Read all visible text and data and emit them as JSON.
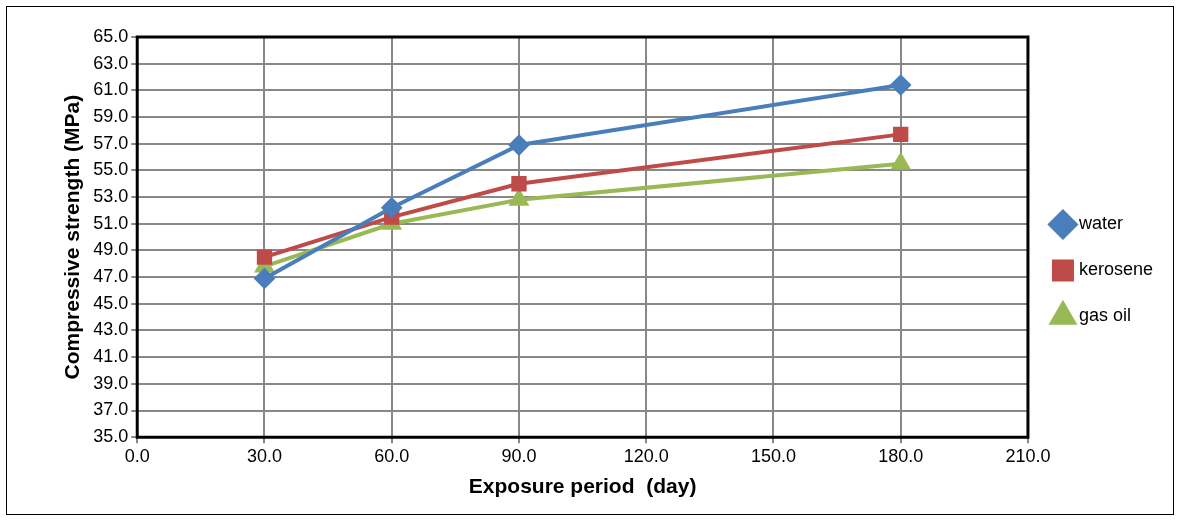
{
  "chart_data": {
    "type": "line",
    "xlabel": "Exposure period  (day)",
    "ylabel": "Compressive strength (MPa)",
    "x": [
      30,
      60,
      90,
      180
    ],
    "series": [
      {
        "name": "water",
        "color": "#4a7ebb",
        "marker": "diamond",
        "values": [
          46.9,
          52.2,
          56.9,
          61.4
        ]
      },
      {
        "name": "kerosene",
        "color": "#be4b48",
        "marker": "square",
        "values": [
          48.5,
          51.5,
          54.0,
          57.7
        ]
      },
      {
        "name": "gas oil",
        "color": "#98b954",
        "marker": "triangle",
        "values": [
          47.8,
          51.0,
          52.8,
          55.5
        ]
      }
    ],
    "xlim": [
      0,
      210
    ],
    "xticks": [
      {
        "value": 0,
        "label": "0.0"
      },
      {
        "value": 30,
        "label": "30.0"
      },
      {
        "value": 60,
        "label": "60.0"
      },
      {
        "value": 90,
        "label": "90.0"
      },
      {
        "value": 120,
        "label": "120.0"
      },
      {
        "value": 150,
        "label": "150.0"
      },
      {
        "value": 180,
        "label": "180.0"
      },
      {
        "value": 210,
        "label": "210.0"
      }
    ],
    "ylim": [
      35,
      65
    ],
    "yticks": [
      {
        "value": 35,
        "label": "35.0"
      },
      {
        "value": 37,
        "label": "37.0"
      },
      {
        "value": 39,
        "label": "39.0"
      },
      {
        "value": 41,
        "label": "41.0"
      },
      {
        "value": 43,
        "label": "43.0"
      },
      {
        "value": 45,
        "label": "45.0"
      },
      {
        "value": 47,
        "label": "47.0"
      },
      {
        "value": 49,
        "label": "49.0"
      },
      {
        "value": 51,
        "label": "51.0"
      },
      {
        "value": 53,
        "label": "53.0"
      },
      {
        "value": 55,
        "label": "55.0"
      },
      {
        "value": 57,
        "label": "57.0"
      },
      {
        "value": 59,
        "label": "59.0"
      },
      {
        "value": 61,
        "label": "61.0"
      },
      {
        "value": 63,
        "label": "63.0"
      },
      {
        "value": 65,
        "label": "65.0"
      }
    ],
    "grid": true,
    "legend": "right",
    "line_style": "solid"
  }
}
